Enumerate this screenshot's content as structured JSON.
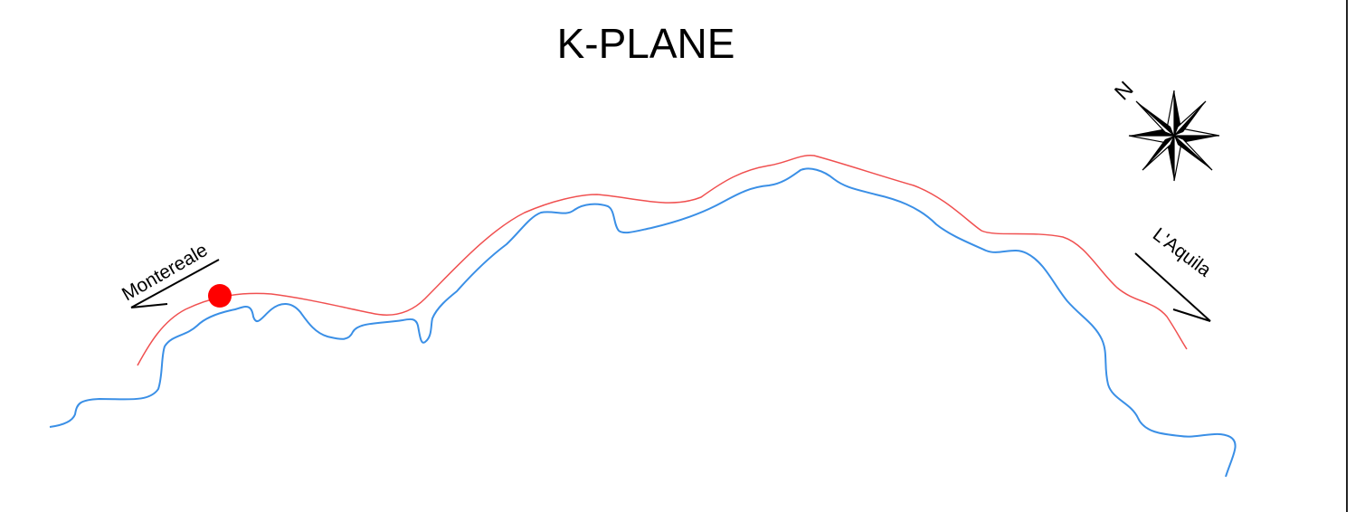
{
  "title": "K-PLANE",
  "places": {
    "left": "Montereale",
    "right": "L'Aquila"
  },
  "compass": {
    "north_label": "N",
    "icon": "compass-rose-icon"
  },
  "legend_marks": {
    "site_marker": "red-dot-icon"
  },
  "colors": {
    "road": "#f05050",
    "river": "#3a8fe6",
    "marker": "#ff0000",
    "text": "#000000"
  }
}
